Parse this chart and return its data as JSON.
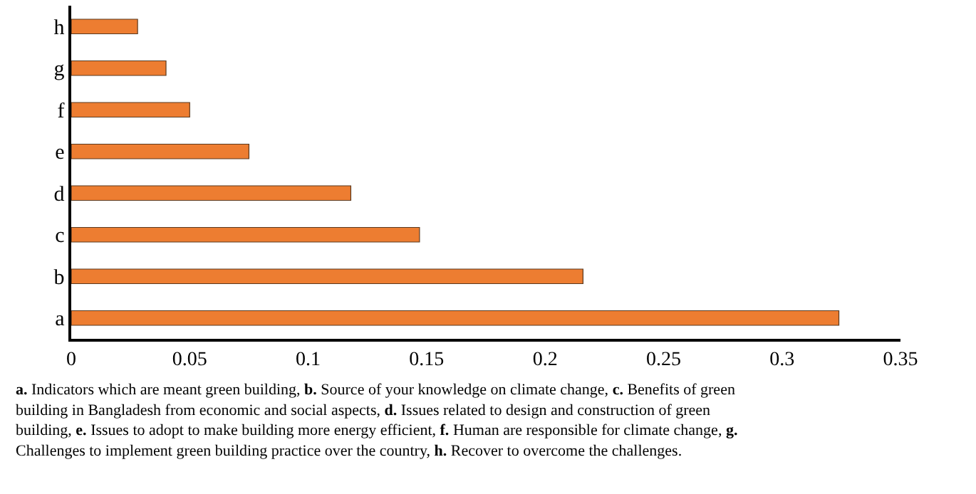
{
  "chart_data": {
    "type": "bar",
    "orientation": "horizontal",
    "categories": [
      "h",
      "g",
      "f",
      "e",
      "d",
      "c",
      "b",
      "a"
    ],
    "values": [
      0.028,
      0.04,
      0.05,
      0.075,
      0.118,
      0.147,
      0.216,
      0.324
    ],
    "color": "#ed7d31",
    "xlim": [
      0,
      0.35
    ],
    "xticks": [
      0,
      0.05,
      0.1,
      0.15,
      0.2,
      0.25,
      0.3,
      0.35
    ],
    "annotations": [
      "a. Indicators which are meant green building, b. Source of your knowledge on climate change, c. Benefits of green building in Bangladesh from economic and social aspects, d. Issues related to design and construction of green building, e. Issues to adopt to make building more energy efficient, f. Human are responsible for climate change, g. Challenges to implement green building practice over the country, h. Recover to overcome the challenges."
    ]
  }
}
